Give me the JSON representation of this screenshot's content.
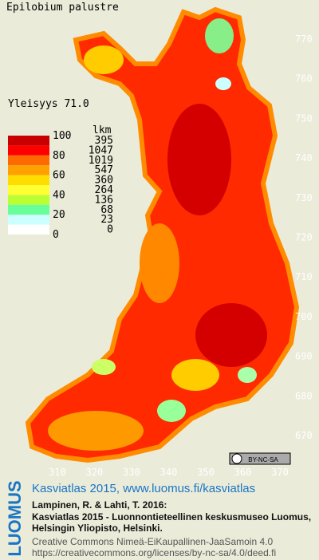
{
  "header": {
    "title": "Epilobium palustre",
    "frequency": "Yleisyys 71.0"
  },
  "legend": {
    "count_heading": "lkm",
    "scale_labels": [
      100,
      80,
      60,
      40,
      20,
      0
    ],
    "classes": [
      {
        "color": "#c80000",
        "count": 395
      },
      {
        "color": "#ff0000",
        "count": 1047
      },
      {
        "color": "#ff6a00",
        "count": 1019
      },
      {
        "color": "#ffa200",
        "count": 547
      },
      {
        "color": "#ffdd00",
        "count": 360
      },
      {
        "color": "#ffff33",
        "count": 264
      },
      {
        "color": "#bbff33",
        "count": 136
      },
      {
        "color": "#66ff99",
        "count": 68
      },
      {
        "color": "#ccffff",
        "count": 23
      },
      {
        "color": "#ffffff",
        "count": 0
      }
    ]
  },
  "map": {
    "y_labels": [
      770,
      760,
      750,
      740,
      730,
      720,
      710,
      700,
      690,
      680,
      670
    ],
    "x_labels": [
      310,
      320,
      330,
      340,
      350,
      360,
      370
    ],
    "license_badge": "BY-NC-SA"
  },
  "footer": {
    "logo": "LUOMUS",
    "link": "Kasviatlas 2015, www.luomus.fi/kasviatlas",
    "citation": [
      "Lampinen, R. & Lahti, T. 2016:",
      "Kasviatlas 2015 - Luonnontieteellinen keskusmuseo Luomus,",
      "Helsingin Yliopisto, Helsinki."
    ],
    "license": [
      "Creative Commons Nimeä-EiKaupallinen-JaaSamoin 4.0",
      "https://creativecommons.org/licenses/by-nc-sa/4.0/deed.fi"
    ]
  }
}
